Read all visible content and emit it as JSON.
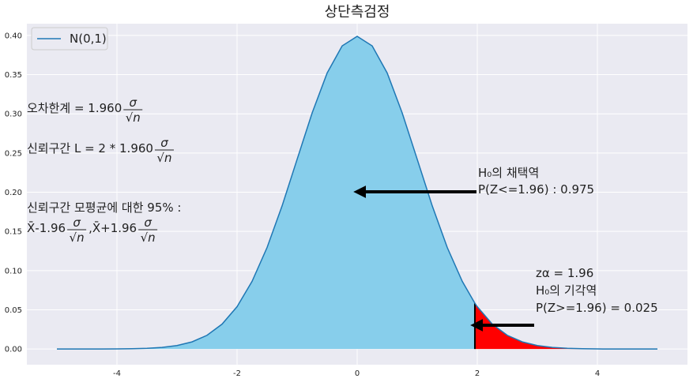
{
  "chart_data": {
    "type": "line",
    "title": "상단측검정",
    "x": [
      -5,
      -4.75,
      -4.5,
      -4.25,
      -4,
      -3.75,
      -3.5,
      -3.25,
      -3,
      -2.75,
      -2.5,
      -2.25,
      -2,
      -1.75,
      -1.5,
      -1.25,
      -1,
      -0.75,
      -0.5,
      -0.25,
      0,
      0.25,
      0.5,
      0.75,
      1,
      1.25,
      1.5,
      1.75,
      1.96,
      2,
      2.25,
      2.5,
      2.75,
      3,
      3.25,
      3.5,
      3.75,
      4,
      4.25,
      4.5,
      4.75,
      5
    ],
    "series": [
      {
        "name": "N(0,1)",
        "color": "#1f77b4",
        "values": [
          0,
          0,
          0,
          0,
          0.0001,
          0.0004,
          0.0009,
          0.002,
          0.0044,
          0.0091,
          0.0175,
          0.0317,
          0.054,
          0.0863,
          0.1295,
          0.1826,
          0.242,
          0.3011,
          0.3521,
          0.3867,
          0.3989,
          0.3867,
          0.3521,
          0.3011,
          0.242,
          0.1826,
          0.1295,
          0.0863,
          0.0584,
          0.054,
          0.0317,
          0.0175,
          0.0091,
          0.0044,
          0.002,
          0.0009,
          0.0004,
          0.0001,
          0,
          0,
          0,
          0
        ]
      }
    ],
    "shade": [
      {
        "from": -5,
        "to": 1.96,
        "color": "#87ceeb"
      },
      {
        "from": 1.96,
        "to": 5,
        "color": "#ff0000"
      }
    ],
    "xlim": [
      -5.5,
      5.5
    ],
    "ylim": [
      -0.02,
      0.415
    ],
    "xticks": [
      -4,
      -2,
      0,
      2,
      4
    ],
    "yticks": [
      {
        "value": 0,
        "label": "0.00"
      },
      0.05,
      {
        "value": 0.1,
        "label": "0.10"
      },
      0.15,
      {
        "value": 0.2,
        "label": "0.20"
      },
      0.25,
      {
        "value": 0.3,
        "label": "0.30"
      },
      0.35,
      {
        "value": 0.4,
        "label": "0.40"
      }
    ],
    "grid": true,
    "legend": "upper left",
    "annotations": [
      [
        [
          "오차한계 = 1.960",
          {
            "num": "σ",
            "den": "√n"
          }
        ]
      ],
      [
        [
          "신뢰구간 L = 2 * 1.960",
          {
            "num": "σ",
            "den": "√n"
          }
        ]
      ],
      [
        [
          "신뢰구간 모평균에 대한 95% :"
        ],
        [
          "X̄-1.96",
          {
            "num": "σ",
            "den": "√n"
          },
          ",X̄+1.96",
          {
            "num": "σ",
            "den": "√n"
          }
        ]
      ],
      [
        [
          "H₀의 채택역"
        ],
        [
          "P(Z<=1.96) : 0.975"
        ]
      ],
      [
        [
          "zα = 1.96"
        ],
        [
          "H₀의 기각역"
        ],
        [
          "P(Z>=1.96) = 0.025"
        ]
      ]
    ]
  }
}
